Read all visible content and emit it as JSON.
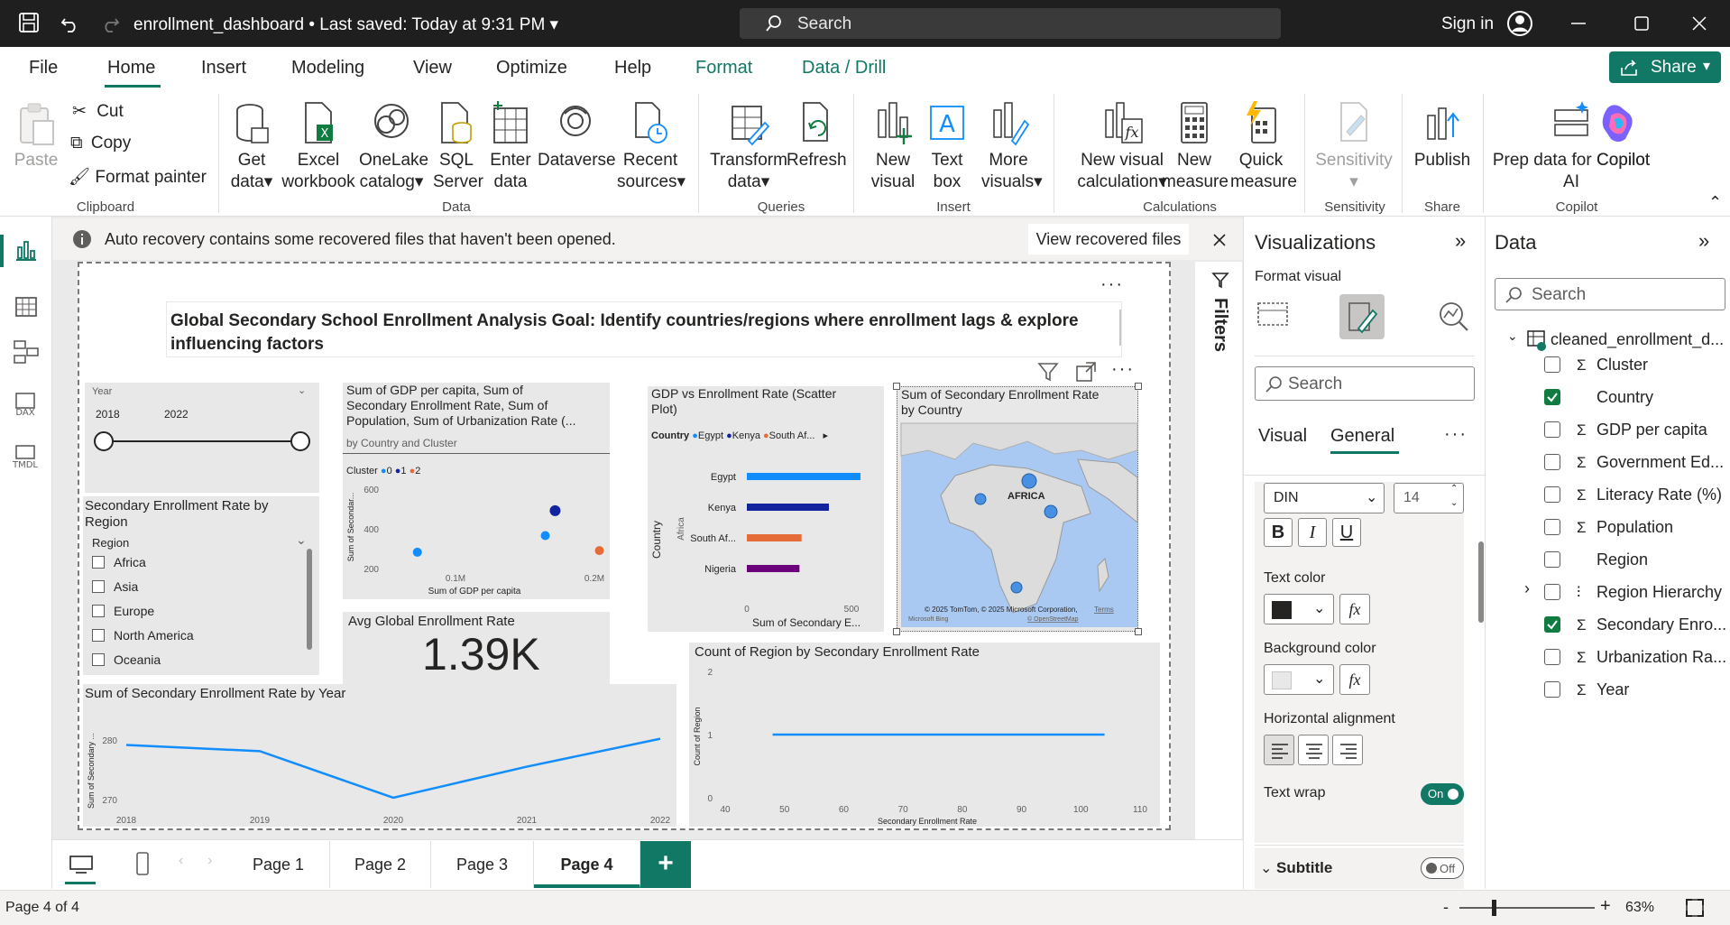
{
  "titlebar": {
    "file_name": "enrollment_dashboard",
    "saved": "Last saved: Today at 9:31 PM",
    "search_placeholder": "Search",
    "sign_in": "Sign in"
  },
  "menu": {
    "file": "File",
    "home": "Home",
    "insert": "Insert",
    "modeling": "Modeling",
    "view": "View",
    "optimize": "Optimize",
    "help": "Help",
    "format": "Format",
    "data_drill": "Data / Drill",
    "share": "Share"
  },
  "ribbon": {
    "paste": "Paste",
    "cut": "Cut",
    "copy": "Copy",
    "format_painter": "Format painter",
    "clipboard": "Clipboard",
    "get_data_1": "Get",
    "get_data_2": "data",
    "excel_1": "Excel",
    "excel_2": "workbook",
    "onelake_1": "OneLake",
    "onelake_2": "catalog",
    "sql_1": "SQL",
    "sql_2": "Server",
    "enter_1": "Enter",
    "enter_2": "data",
    "dataverse": "Dataverse",
    "recent_1": "Recent",
    "recent_2": "sources",
    "data_group": "Data",
    "transform_1": "Transform",
    "transform_2": "data",
    "refresh": "Refresh",
    "queries": "Queries",
    "newvisual_1": "New",
    "newvisual_2": "visual",
    "textbox_1": "Text",
    "textbox_2": "box",
    "morevisuals_1": "More",
    "morevisuals_2": "visuals",
    "insert": "Insert",
    "newcalc_1": "New visual",
    "newcalc_2": "calculation",
    "newmeasure_1": "New",
    "newmeasure_2": "measure",
    "quick_1": "Quick",
    "quick_2": "measure",
    "calculations": "Calculations",
    "sensitivity": "Sensitivity",
    "sensitivity_group": "Sensitivity",
    "publish": "Publish",
    "share_group": "Share",
    "prep_1": "Prep data for Copilot",
    "prep_2": "AI",
    "copilot": "Copilot",
    "copilot_group": "Copilot"
  },
  "infobar": {
    "message": "Auto recovery contains some recovered files that haven't been opened.",
    "button": "View recovered files"
  },
  "report": {
    "title_1": "Global Secondary School Enrollment Analysis Goal: Identify countries/regions where enrollment lags & explore",
    "title_2": "influencing factors",
    "year_slicer": {
      "label": "Year",
      "start": "2018",
      "end": "2022"
    },
    "region_slicer": {
      "title_1": "Secondary Enrollment Rate by",
      "title_2": "Region",
      "header": "Region",
      "items": [
        "Africa",
        "Asia",
        "Europe",
        "North America",
        "Oceania"
      ]
    },
    "cluster_chart": {
      "title_1": "Sum of GDP per capita, Sum of",
      "title_2": "Secondary Enrollment Rate, Sum of",
      "title_3": "Population, Sum of Urbanization Rate (...",
      "subtitle": "by Country and Cluster",
      "legend_title": "Cluster",
      "legend": [
        "0",
        "1",
        "2"
      ],
      "yticks": [
        "600",
        "400",
        "200"
      ],
      "xticks": [
        "0.1M",
        "0.2M"
      ],
      "ylabel": "Sum of Secondar...",
      "xlabel": "Sum of GDP per capita"
    },
    "card": {
      "title": "Avg Global Enrollment Rate",
      "value": "1.39K"
    },
    "scatter": {
      "title_1": "GDP vs Enrollment Rate (Scatter",
      "title_2": "Plot)",
      "legend_title": "Country",
      "legend": [
        "Egypt",
        "Kenya",
        "South Af..."
      ],
      "ylabel": "Country",
      "region_label": "Africa",
      "xlabel": "Sum of Secondary E...",
      "xticks": [
        "0",
        "500"
      ]
    },
    "map": {
      "title_1": "Sum of Secondary Enrollment Rate",
      "title_2": "by Country",
      "label": "AFRICA",
      "credit": "© 2025 TomTom, © 2025 Microsoft Corporation,",
      "terms": "Terms",
      "osm": "© OpenStreetMap",
      "bing": "Microsoft Bing"
    },
    "line_chart": {
      "title": "Sum of Secondary Enrollment Rate by Year",
      "ylabel": "Sum of Secondary ...",
      "yticks": [
        "280",
        "270"
      ],
      "xticks": [
        "2018",
        "2019",
        "2020",
        "2021",
        "2022"
      ]
    },
    "count_chart": {
      "title": "Count of Region by Secondary Enrollment Rate",
      "ylabel": "Count of Region",
      "xlabel": "Secondary Enrollment Rate",
      "yticks": [
        "2",
        "1",
        "0"
      ],
      "xticks": [
        "40",
        "50",
        "60",
        "70",
        "80",
        "90",
        "100",
        "110"
      ]
    }
  },
  "chart_data": [
    {
      "type": "bar",
      "title": "GDP vs Enrollment Rate (Scatter Plot)",
      "orientation": "horizontal",
      "categories": [
        "Egypt",
        "Kenya",
        "South Af...",
        "Nigeria"
      ],
      "values": [
        540,
        390,
        260,
        250
      ],
      "xlim": [
        0,
        600
      ],
      "colors": [
        "#118dff",
        "#12239e",
        "#e66c37",
        "#6b007b"
      ]
    },
    {
      "type": "scatter",
      "title": "Sum of GDP per capita, Sum of Secondary Enrollment Rate, Sum of Population, Sum of Urbanization Rate (...",
      "points": [
        {
          "x": 0.03,
          "y": 270,
          "cluster": "0"
        },
        {
          "x": 0.16,
          "y": 370,
          "cluster": "0"
        },
        {
          "x": 0.17,
          "y": 520,
          "cluster": "1"
        },
        {
          "x": 0.215,
          "y": 280,
          "cluster": "2"
        }
      ],
      "xlim": [
        0,
        0.22
      ],
      "ylim": [
        150,
        650
      ]
    },
    {
      "type": "line",
      "title": "Sum of Secondary Enrollment Rate by Year",
      "x": [
        2018,
        2019,
        2020,
        2021,
        2022
      ],
      "values": [
        280,
        279,
        271.5,
        276.5,
        281
      ],
      "ylim": [
        268,
        284
      ]
    },
    {
      "type": "line",
      "title": "Count of Region by Secondary Enrollment Rate",
      "x": [
        48,
        104
      ],
      "values": [
        1,
        1
      ],
      "xlim": [
        40,
        110
      ],
      "ylim": [
        0,
        2
      ]
    }
  ],
  "filters": {
    "label": "Filters"
  },
  "viz_pane": {
    "title": "Visualizations",
    "format_visual": "Format visual",
    "search_placeholder": "Search",
    "tab_visual": "Visual",
    "tab_general": "General",
    "font": "DIN",
    "font_size": "14",
    "bold": "B",
    "italic": "I",
    "underline": "U",
    "text_color": "Text color",
    "fx": "fx",
    "background_color": "Background color",
    "horizontal_alignment": "Horizontal alignment",
    "text_wrap": "Text wrap",
    "text_wrap_state": "On",
    "subtitle": "Subtitle",
    "subtitle_state": "Off",
    "colors": {
      "text": "#252423",
      "background": "#e8e8e8"
    }
  },
  "data_pane": {
    "title": "Data",
    "search_placeholder": "Search",
    "table": "cleaned_enrollment_d...",
    "fields": [
      {
        "name": "Cluster",
        "sigma": true,
        "checked": false
      },
      {
        "name": "Country",
        "sigma": false,
        "checked": true
      },
      {
        "name": "GDP per capita",
        "sigma": true,
        "checked": false
      },
      {
        "name": "Government Ed...",
        "sigma": true,
        "checked": false
      },
      {
        "name": "Literacy Rate (%)",
        "sigma": true,
        "checked": false
      },
      {
        "name": "Population",
        "sigma": true,
        "checked": false
      },
      {
        "name": "Region",
        "sigma": false,
        "checked": false
      },
      {
        "name": "Region Hierarchy",
        "sigma": false,
        "checked": false
      },
      {
        "name": "Secondary Enro...",
        "sigma": true,
        "checked": true
      },
      {
        "name": "Urbanization Ra...",
        "sigma": true,
        "checked": false
      },
      {
        "name": "Year",
        "sigma": true,
        "checked": false
      }
    ]
  },
  "pages": [
    "Page 1",
    "Page 2",
    "Page 3",
    "Page 4"
  ],
  "active_page": "Page 4",
  "status": {
    "page": "Page 4 of 4",
    "zoom": "63%",
    "minus": "-",
    "plus": "+"
  }
}
